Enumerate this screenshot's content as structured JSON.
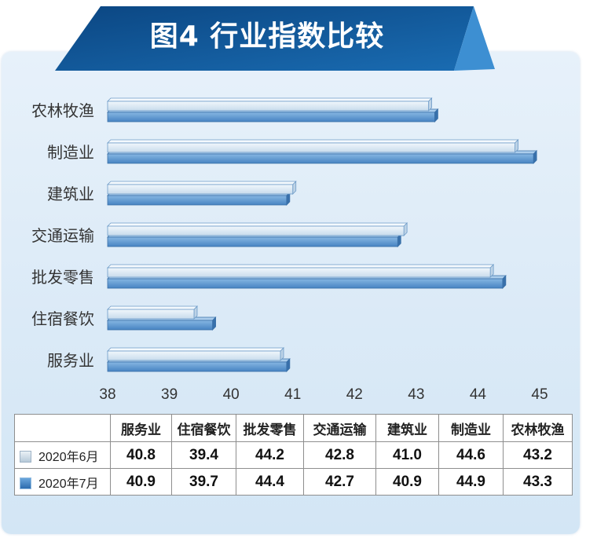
{
  "chart_data": {
    "type": "bar",
    "orientation": "horizontal",
    "title": "图4 行业指数比较",
    "categories": [
      "农林牧渔",
      "制造业",
      "建筑业",
      "交通运输",
      "批发零售",
      "住宿餐饮",
      "服务业"
    ],
    "series": [
      {
        "name": "2020年6月",
        "values": [
          43.2,
          44.6,
          41.0,
          42.8,
          44.2,
          39.4,
          40.8
        ],
        "color": "#cfe0ee"
      },
      {
        "name": "2020年7月",
        "values": [
          43.3,
          44.9,
          40.9,
          42.7,
          44.4,
          39.7,
          40.9
        ],
        "color": "#4a88c6"
      }
    ],
    "xlim": [
      38,
      45
    ],
    "xticks": [
      38,
      39,
      40,
      41,
      42,
      43,
      44,
      45
    ],
    "grid": false,
    "legend": "bottom"
  },
  "table": {
    "columns": [
      "服务业",
      "住宿餐饮",
      "批发零售",
      "交通运输",
      "建筑业",
      "制造业",
      "农林牧渔"
    ],
    "rows": [
      {
        "values": [
          "40.8",
          "39.4",
          "44.2",
          "42.8",
          "41.0",
          "44.6",
          "43.2"
        ]
      },
      {
        "values": [
          "40.9",
          "39.7",
          "44.4",
          "42.7",
          "40.9",
          "44.9",
          "43.3"
        ]
      }
    ]
  },
  "colors": {
    "banner": "#0b4682",
    "banner_fold": "#3d8fd2",
    "panel": "#dbeaf7"
  }
}
